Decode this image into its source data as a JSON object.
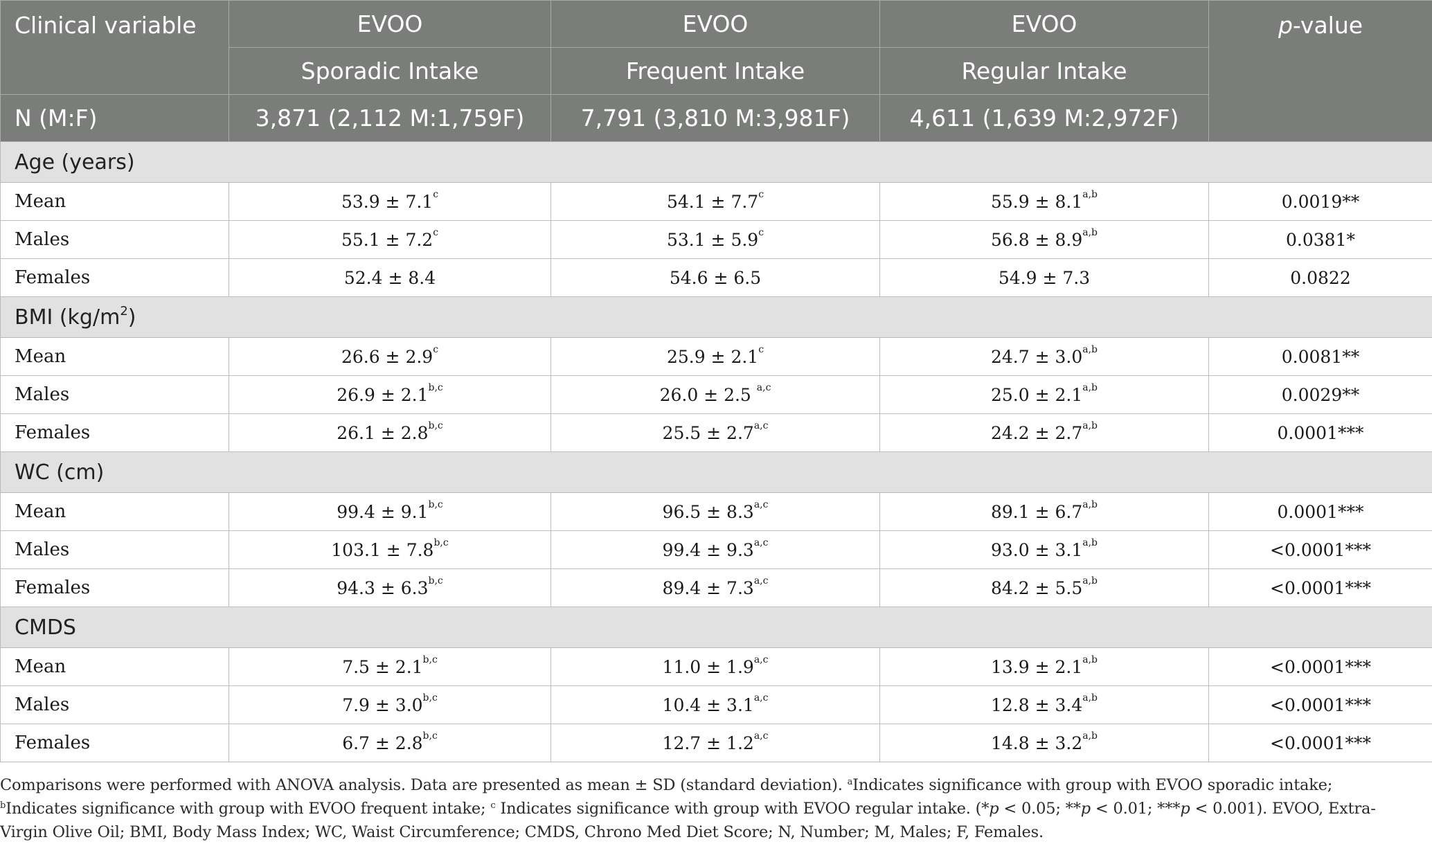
{
  "header": {
    "clinical_variable": "Clinical variable",
    "col1_line1": "EVOO",
    "col1_line2": "Sporadic Intake",
    "col2_line1": "EVOO",
    "col2_line2": "Frequent Intake",
    "col3_line1": "EVOO",
    "col3_line2": "Regular Intake",
    "pvalue_italic": "p",
    "pvalue_rest": "-value",
    "n_label": "N (M:F)",
    "n1": "3,871 (2,112 M:1,759F)",
    "n2": "7,791 (3,810 M:3,981F)",
    "n3": "4,611 (1,639 M:2,972F)"
  },
  "sections": {
    "age": {
      "title": "Age (years)",
      "rows": [
        {
          "label": "Mean",
          "c1": "53.9 ± 7.1",
          "s1": "c",
          "c2": "54.1 ± 7.7",
          "s2": "c",
          "c3": "55.9 ± 8.1",
          "s3": "a,b",
          "p": "0.0019**"
        },
        {
          "label": "Males",
          "c1": "55.1 ± 7.2",
          "s1": "c",
          "c2": "53.1 ± 5.9",
          "s2": "c",
          "c3": "56.8 ± 8.9",
          "s3": "a,b",
          "p": "0.0381*"
        },
        {
          "label": "Females",
          "c1": "52.4 ± 8.4",
          "s1": "",
          "c2": "54.6 ± 6.5",
          "s2": "",
          "c3": "54.9 ± 7.3",
          "s3": "",
          "p": "0.0822"
        }
      ]
    },
    "bmi": {
      "title": "BMI (kg/m",
      "title_sup": "2",
      "title_end": ")",
      "rows": [
        {
          "label": "Mean",
          "c1": "26.6 ± 2.9",
          "s1": "c",
          "c2": "25.9 ± 2.1",
          "s2": "c",
          "c3": "24.7 ± 3.0",
          "s3": "a,b",
          "p": "0.0081**"
        },
        {
          "label": "Males",
          "c1": "26.9 ± 2.1",
          "s1": "b,c",
          "c2": "26.0 ± 2.5 ",
          "s2": "a,c",
          "c3": "25.0 ± 2.1",
          "s3": "a,b",
          "p": "0.0029**"
        },
        {
          "label": "Females",
          "c1": "26.1 ± 2.8",
          "s1": "b,c",
          "c2": "25.5 ± 2.7",
          "s2": "a,c",
          "c3": "24.2 ± 2.7",
          "s3": "a,b",
          "p": "0.0001***"
        }
      ]
    },
    "wc": {
      "title": "WC (cm)",
      "rows": [
        {
          "label": "Mean",
          "c1": "99.4 ± 9.1",
          "s1": "b,c",
          "c2": "96.5 ± 8.3",
          "s2": "a,c",
          "c3": "89.1 ± 6.7",
          "s3": "a,b",
          "p": "0.0001***"
        },
        {
          "label": "Males",
          "c1": "103.1 ± 7.8",
          "s1": "b,c",
          "c2": "99.4 ± 9.3",
          "s2": "a,c",
          "c3": "93.0 ± 3.1",
          "s3": "a,b",
          "p": "<0.0001***"
        },
        {
          "label": "Females",
          "c1": "94.3 ± 6.3",
          "s1": "b,c",
          "c2": "89.4 ± 7.3",
          "s2": "a,c",
          "c3": "84.2 ± 5.5",
          "s3": "a,b",
          "p": "<0.0001***"
        }
      ]
    },
    "cmds": {
      "title": "CMDS",
      "rows": [
        {
          "label": "Mean",
          "c1": "7.5 ± 2.1",
          "s1": "b,c",
          "c2": "11.0 ± 1.9",
          "s2": "a,c",
          "c3": "13.9 ± 2.1",
          "s3": "a,b",
          "p": "<0.0001***"
        },
        {
          "label": "Males",
          "c1": "7.9 ± 3.0",
          "s1": "b,c",
          "c2": "10.4 ± 3.1",
          "s2": "a,c",
          "c3": "12.8 ± 3.4",
          "s3": "a,b",
          "p": "<0.0001***"
        },
        {
          "label": "Females",
          "c1": "6.7 ± 2.8",
          "s1": "b,c",
          "c2": "12.7 ± 1.2",
          "s2": "a,c",
          "c3": "14.8 ± 3.2",
          "s3": "a,b",
          "p": "<0.0001***"
        }
      ]
    }
  },
  "footnote": {
    "t1": "Comparisons were performed with ANOVA analysis. Data are presented as mean ± SD (standard deviation). ",
    "sa": "a",
    "t2": "Indicates significance with group with EVOO sporadic intake; ",
    "sb": "b",
    "t3": "Indicates significance with group with EVOO frequent intake; ",
    "sc": "c",
    "t4": " Indicates significance with group with EVOO regular intake. (*",
    "p1": "p",
    "t5": " < 0.05; **",
    "p2": "p",
    "t6": " < 0.01; ***",
    "p3": "p",
    "t7": " < 0.001). EVOO, Extra-Virgin Olive Oil; BMI, Body Mass Index; WC, Waist Circumference; CMDS, Chrono Med Diet Score; N, Number; M, Males; F, Females."
  }
}
